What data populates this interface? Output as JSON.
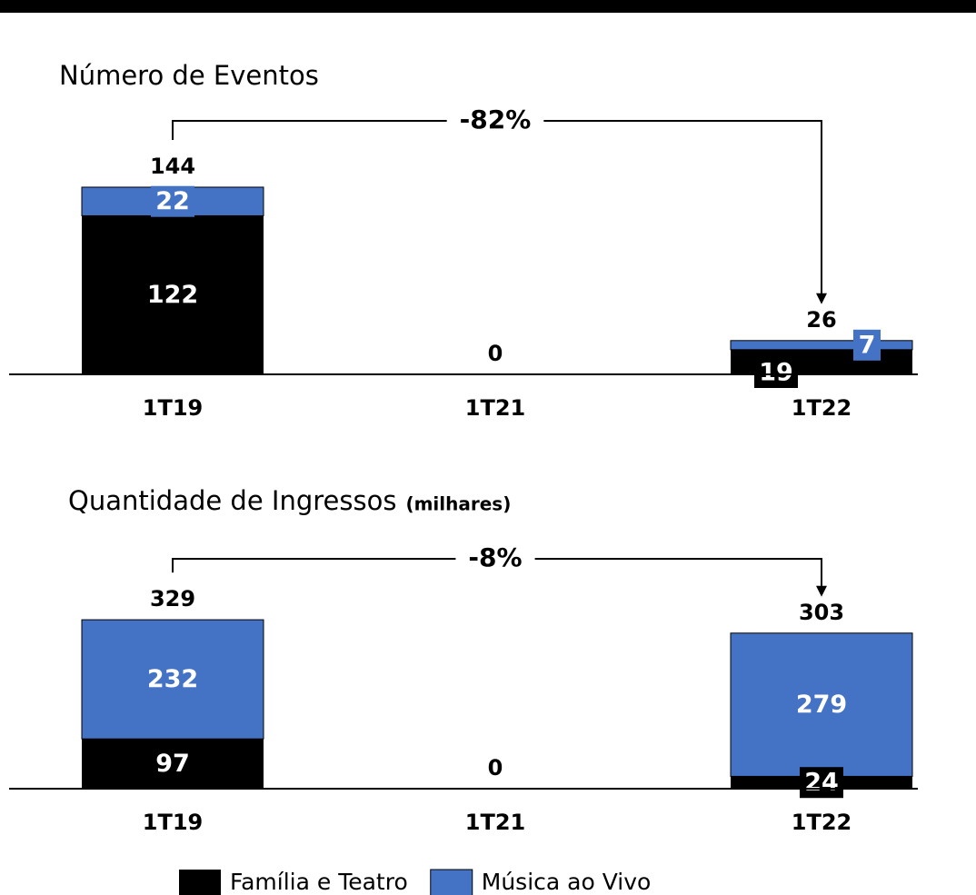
{
  "chart_data": [
    {
      "type": "stacked_bar",
      "title": "Número de Eventos",
      "categories": [
        "1T19",
        "1T21",
        "1T22"
      ],
      "series": [
        {
          "name": "Família e Teatro",
          "color": "#000000",
          "values": [
            122,
            0,
            19
          ]
        },
        {
          "name": "Música ao Vivo",
          "color": "#4472c4",
          "values": [
            22,
            0,
            7
          ]
        }
      ],
      "totals": [
        144,
        0,
        26
      ],
      "annotation": "-82%",
      "ylim": [
        0,
        150
      ]
    },
    {
      "type": "stacked_bar",
      "title": "Quantidade de Ingressos",
      "subtitle": "(milhares)",
      "categories": [
        "1T19",
        "1T21",
        "1T22"
      ],
      "series": [
        {
          "name": "Família e Teatro",
          "color": "#000000",
          "values": [
            97,
            0,
            24
          ]
        },
        {
          "name": "Música ao Vivo",
          "color": "#4472c4",
          "values": [
            232,
            0,
            279
          ]
        }
      ],
      "totals": [
        329,
        0,
        303
      ],
      "annotation": "-8%",
      "ylim": [
        0,
        350
      ]
    }
  ]
}
